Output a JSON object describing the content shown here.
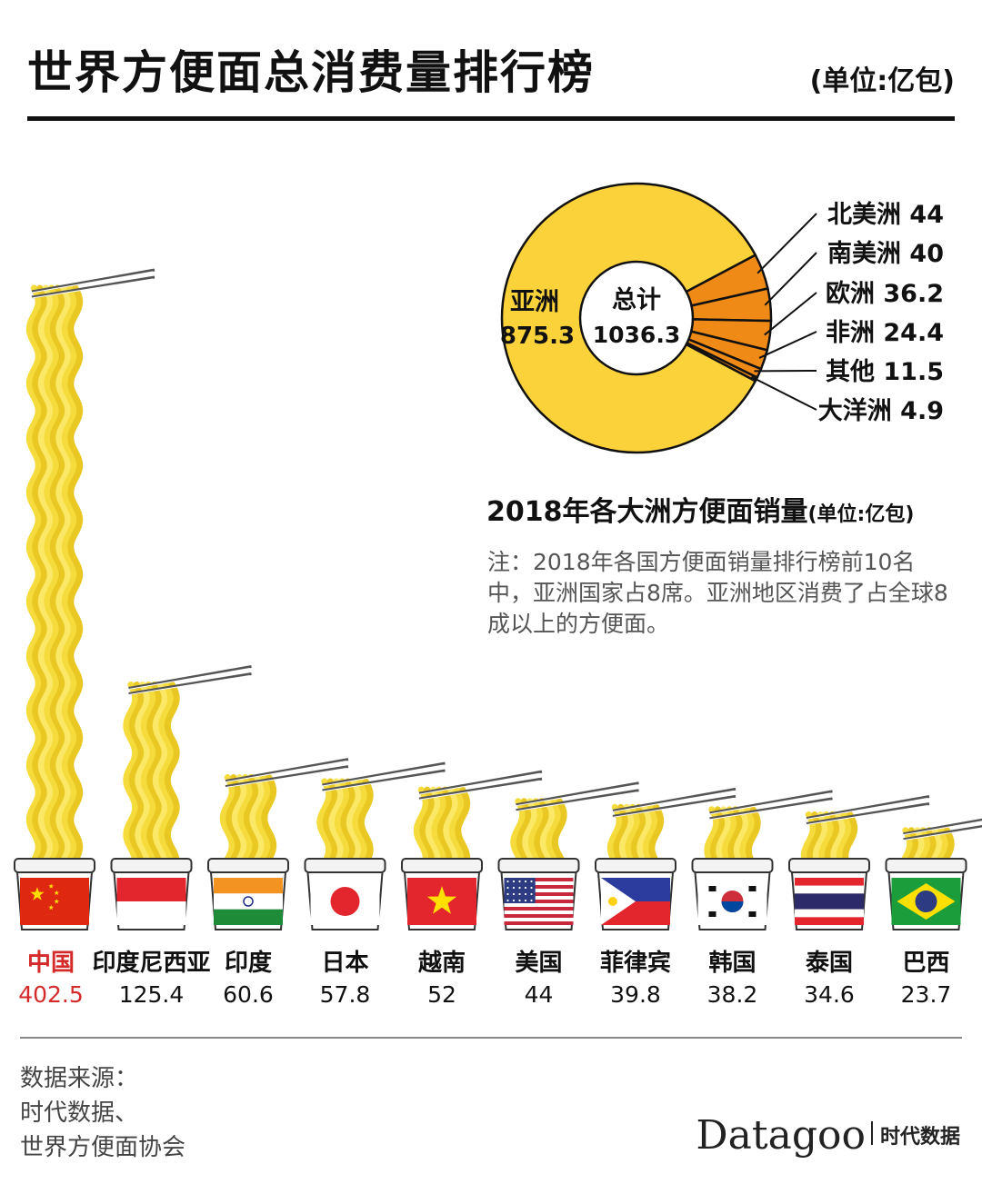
{
  "title": "世界方便面总消费量排行榜",
  "unit": "(单位:亿包)",
  "chart_data": [
    {
      "type": "bar",
      "title": "世界方便面总消费量排行榜",
      "unit": "(单位:亿包)",
      "categories": [
        "中国",
        "印度尼西亚",
        "印度",
        "日本",
        "越南",
        "美国",
        "菲律宾",
        "韩国",
        "泰国",
        "巴西"
      ],
      "values": [
        402.5,
        125.4,
        60.6,
        57.8,
        52,
        44,
        39.8,
        38.2,
        34.6,
        23.7
      ],
      "value_labels": [
        "402.5",
        "125.4",
        "60.6",
        "57.8",
        "52",
        "44",
        "39.8",
        "38.2",
        "34.6",
        "23.7"
      ],
      "flags": [
        "china",
        "indonesia",
        "india",
        "japan",
        "vietnam",
        "usa",
        "philippines",
        "south-korea",
        "thailand",
        "brazil"
      ],
      "highlight_color": "#d42a2a",
      "noodle_color": "#f5dc3c",
      "noodle_dark": "#e2bb18"
    },
    {
      "type": "pie",
      "title": "2018年各大洲方便面销量",
      "unit": "(单位:亿包)",
      "center_label": "总计",
      "center_value": "1036.3",
      "slices": [
        {
          "label": "亚洲",
          "value": 875.3,
          "value_label": "875.3",
          "color": "#fcd23a"
        },
        {
          "label": "北美洲",
          "value": 44,
          "value_label": "44",
          "color": "#f08a16"
        },
        {
          "label": "南美洲",
          "value": 40,
          "value_label": "40",
          "color": "#f08a16"
        },
        {
          "label": "欧洲",
          "value": 36.2,
          "value_label": "36.2",
          "color": "#f08a16"
        },
        {
          "label": "非洲",
          "value": 24.4,
          "value_label": "24.4",
          "color": "#f08a16"
        },
        {
          "label": "其他",
          "value": 11.5,
          "value_label": "11.5",
          "color": "#f08a16"
        },
        {
          "label": "大洋洲",
          "value": 4.9,
          "value_label": "4.9",
          "color": "#f08a16"
        }
      ]
    }
  ],
  "donut_caption": {
    "main": "2018年各大洲方便面销量",
    "unit": "(单位:亿包)"
  },
  "note": "注：2018年各国方便面销量排行榜前10名中，亚洲国家占8席。亚洲地区消费了占全球8成以上的方便面。",
  "source": {
    "line1": "数据来源：",
    "line2": "时代数据、",
    "line3": "世界方便面协会"
  },
  "brand": {
    "name": "Datagoo",
    "cn": "时代数据"
  }
}
